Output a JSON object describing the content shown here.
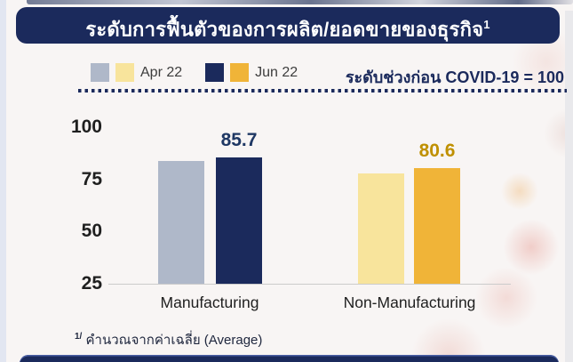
{
  "title": {
    "text": "ระดับการฟื้นตัวของการผลิต/ยอดขายของธุรกิจ",
    "superscript": "1"
  },
  "colors": {
    "header_bg": "#1b2a5c",
    "accent_navy": "#1b2a5c"
  },
  "legend": {
    "items": [
      {
        "label": "Apr 22",
        "swatches": [
          "#afb8c9",
          "#f8e49c"
        ]
      },
      {
        "label": "Jun 22",
        "swatches": [
          "#1b2a5c",
          "#f0b438"
        ]
      }
    ],
    "note": "ระดับช่วงก่อน COVID-19 = 100"
  },
  "footnote": {
    "superscript": "1/",
    "text": "คำนวณจากค่าเฉลี่ย (Average)"
  },
  "chart_data": {
    "type": "bar",
    "title": "ระดับการฟื้นตัวของการผลิต/ยอดขายของธุรกิจ",
    "categories": [
      "Manufacturing",
      "Non-Manufacturing"
    ],
    "series": [
      {
        "name": "Apr 22",
        "values": [
          84,
          78
        ],
        "colors": [
          "#afb8c9",
          "#f8e49c"
        ],
        "labels": [
          "",
          ""
        ],
        "label_colors": [
          "",
          ""
        ]
      },
      {
        "name": "Jun 22",
        "values": [
          85.7,
          80.6
        ],
        "colors": [
          "#1b2a5c",
          "#f0b438"
        ],
        "labels": [
          "85.7",
          "80.6"
        ],
        "label_colors": [
          "#1f3864",
          "#bf9000"
        ]
      }
    ],
    "xlabel": "",
    "ylabel": "",
    "yticks": [
      100,
      75,
      50,
      25
    ],
    "ylim": [
      25,
      100
    ],
    "grid": false,
    "legend_position": "top",
    "annotation": "ระดับช่วงก่อน COVID-19 = 100"
  }
}
